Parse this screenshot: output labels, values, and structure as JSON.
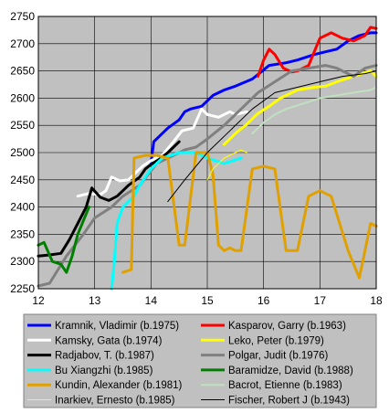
{
  "chart_data": {
    "type": "line",
    "title": "",
    "xlabel": "",
    "ylabel": "",
    "xlim": [
      12,
      18
    ],
    "ylim": [
      2250,
      2750
    ],
    "xticks": [
      12,
      13,
      14,
      15,
      16,
      17,
      18
    ],
    "yticks": [
      2250,
      2300,
      2350,
      2400,
      2450,
      2500,
      2550,
      2600,
      2650,
      2700,
      2750
    ],
    "xtick_labels": [
      "12",
      "13",
      "14",
      "15",
      "16",
      "17",
      "18"
    ],
    "ytick_labels": [
      "2250",
      "2300",
      "2350",
      "2400",
      "2450",
      "2500",
      "2550",
      "2600",
      "2650",
      "2700",
      "2750"
    ],
    "grid": true,
    "legend_placement": "bottom",
    "plot_background": "#c0c0c0",
    "series": [
      {
        "name": "Kramnik, Vladimir (b.1975)",
        "color": "#0000ff",
        "width": 3,
        "x": [
          14.0,
          14.05,
          14.2,
          14.3,
          14.5,
          14.6,
          14.7,
          14.9,
          15.1,
          15.3,
          15.5,
          15.8,
          16.1,
          16.4,
          16.6,
          16.9,
          17.1,
          17.3,
          17.5,
          17.7,
          17.9,
          18.0
        ],
        "y": [
          2480,
          2520,
          2535,
          2545,
          2560,
          2575,
          2580,
          2585,
          2605,
          2615,
          2622,
          2635,
          2660,
          2665,
          2670,
          2680,
          2685,
          2690,
          2705,
          2715,
          2720,
          2720
        ]
      },
      {
        "name": "Kasparov, Garry (b.1963)",
        "color": "#ff0000",
        "width": 3,
        "x": [
          15.9,
          16.0,
          16.1,
          16.2,
          16.35,
          16.5,
          16.6,
          16.8,
          17.0,
          17.2,
          17.4,
          17.6,
          17.8,
          17.9,
          18.0
        ],
        "y": [
          2640,
          2670,
          2690,
          2680,
          2655,
          2648,
          2650,
          2660,
          2710,
          2720,
          2710,
          2705,
          2715,
          2730,
          2728
        ]
      },
      {
        "name": "Kamsky, Gata (b.1974)",
        "color": "#ffffff",
        "width": 3,
        "x": [
          12.7,
          12.9,
          13.1,
          13.2,
          13.3,
          13.45,
          13.6,
          13.7,
          13.85,
          14.0,
          14.2,
          14.4,
          14.55,
          14.75,
          14.9,
          15.0,
          15.2,
          15.4,
          15.5,
          15.7
        ],
        "y": [
          2420,
          2425,
          2423,
          2430,
          2455,
          2448,
          2450,
          2460,
          2475,
          2485,
          2495,
          2520,
          2540,
          2545,
          2580,
          2570,
          2565,
          2575,
          2570,
          2575
        ]
      },
      {
        "name": "Leko, Peter (b.1979)",
        "color": "#ffff00",
        "width": 3,
        "x": [
          15.3,
          15.5,
          15.7,
          15.9,
          16.1,
          16.3,
          16.6,
          16.9,
          17.1,
          17.3,
          17.6,
          17.9,
          18.0
        ],
        "y": [
          2515,
          2535,
          2552,
          2572,
          2585,
          2600,
          2615,
          2620,
          2622,
          2630,
          2640,
          2650,
          2640
        ]
      },
      {
        "name": "Radjabov, T. (b.1987)",
        "color": "#000000",
        "width": 3,
        "x": [
          12.0,
          12.2,
          12.4,
          12.55,
          12.7,
          12.85,
          12.95,
          13.1,
          13.25,
          13.4,
          13.6,
          13.8,
          13.9,
          14.0,
          14.15,
          14.3,
          14.5
        ],
        "y": [
          2310,
          2312,
          2315,
          2340,
          2370,
          2400,
          2435,
          2418,
          2412,
          2420,
          2440,
          2455,
          2470,
          2478,
          2488,
          2500,
          2520
        ]
      },
      {
        "name": "Polgar, Judit (b.1976)",
        "color": "#808080",
        "width": 3,
        "x": [
          12.0,
          12.2,
          12.5,
          12.8,
          13.0,
          13.3,
          13.5,
          13.8,
          14.1,
          14.3,
          14.6,
          14.8,
          15.0,
          15.3,
          15.6,
          15.9,
          16.2,
          16.5,
          16.8,
          17.1,
          17.3,
          17.6,
          17.8,
          18.0
        ],
        "y": [
          2255,
          2260,
          2310,
          2350,
          2380,
          2400,
          2420,
          2440,
          2480,
          2490,
          2505,
          2510,
          2525,
          2550,
          2580,
          2610,
          2630,
          2650,
          2655,
          2660,
          2655,
          2640,
          2655,
          2660
        ]
      },
      {
        "name": "Bu Xiangzhi (b.1985)",
        "color": "#00ffff",
        "width": 3,
        "x": [
          13.3,
          13.35,
          13.4,
          13.5,
          13.6,
          13.7,
          13.8,
          14.0,
          14.2,
          14.5,
          14.8,
          15.0,
          15.3,
          15.6
        ],
        "y": [
          2250,
          2300,
          2370,
          2400,
          2410,
          2420,
          2440,
          2470,
          2490,
          2500,
          2500,
          2490,
          2480,
          2490
        ]
      },
      {
        "name": "Baramidze, David (b.1988)",
        "color": "#008000",
        "width": 3,
        "x": [
          12.0,
          12.1,
          12.25,
          12.4,
          12.5,
          12.6,
          12.7,
          12.8,
          12.9
        ],
        "y": [
          2330,
          2335,
          2300,
          2295,
          2280,
          2310,
          2350,
          2375,
          2400
        ]
      },
      {
        "name": "Kundin, Alexander (b.1981)",
        "color": "#e0a000",
        "width": 3,
        "x": [
          13.5,
          13.65,
          13.7,
          13.9,
          14.1,
          14.3,
          14.5,
          14.6,
          14.8,
          14.9,
          15.0,
          15.1,
          15.2,
          15.3,
          15.4,
          15.5,
          15.6,
          15.8,
          16.0,
          16.2,
          16.4,
          16.6,
          16.8,
          17.0,
          17.2,
          17.5,
          17.7,
          17.8,
          17.9,
          18.0
        ],
        "y": [
          2280,
          2285,
          2490,
          2495,
          2495,
          2490,
          2330,
          2330,
          2500,
          2500,
          2500,
          2460,
          2330,
          2320,
          2325,
          2320,
          2320,
          2470,
          2475,
          2470,
          2320,
          2320,
          2420,
          2430,
          2420,
          2320,
          2270,
          2320,
          2370,
          2365
        ]
      },
      {
        "name": "Bacrot, Etienne (b.1983)",
        "color": "#c0e0c0",
        "width": 2,
        "x": [
          15.8,
          16.0,
          16.2,
          16.4,
          16.7,
          17.0,
          17.3,
          17.6,
          17.9,
          18.0
        ],
        "y": [
          2535,
          2555,
          2570,
          2580,
          2590,
          2600,
          2605,
          2610,
          2615,
          2620
        ]
      },
      {
        "name": "Inarkiev, Ernesto (b.1985)",
        "color": "#ffff00",
        "width": 1,
        "x": [
          15.0,
          15.1,
          15.2,
          15.3,
          15.4,
          15.5,
          15.6,
          15.7
        ],
        "y": [
          2450,
          2470,
          2480,
          2490,
          2495,
          2500,
          2505,
          2500
        ]
      },
      {
        "name": "Fischer, Robert J (b.1943)",
        "color": "#000000",
        "width": 1,
        "x": [
          14.3,
          14.6,
          15.0,
          15.4,
          15.8,
          16.2,
          16.6,
          17.0,
          17.4,
          17.8,
          18.0
        ],
        "y": [
          2410,
          2450,
          2500,
          2540,
          2580,
          2610,
          2620,
          2630,
          2640,
          2645,
          2650
        ]
      }
    ]
  }
}
